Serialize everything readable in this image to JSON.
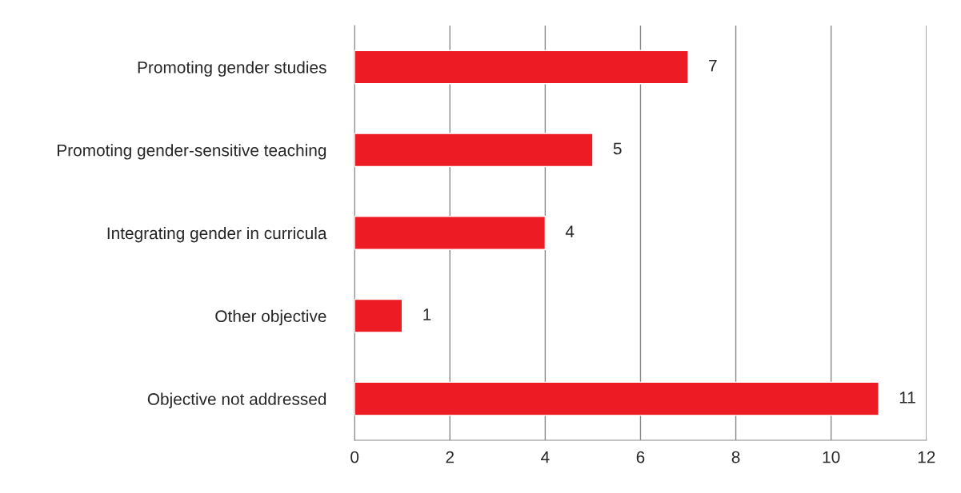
{
  "chart_data": {
    "type": "bar",
    "orientation": "horizontal",
    "categories": [
      "Promoting gender studies",
      "Promoting gender-sensitive teaching",
      "Integrating gender in curricula",
      "Other objective",
      "Objective not addressed"
    ],
    "values": [
      7,
      5,
      4,
      1,
      11
    ],
    "color": "#ed1c24",
    "xlim": [
      0,
      12
    ],
    "xticks": [
      0,
      2,
      4,
      6,
      8,
      10,
      12
    ],
    "grid": "x",
    "data_labels": true
  }
}
